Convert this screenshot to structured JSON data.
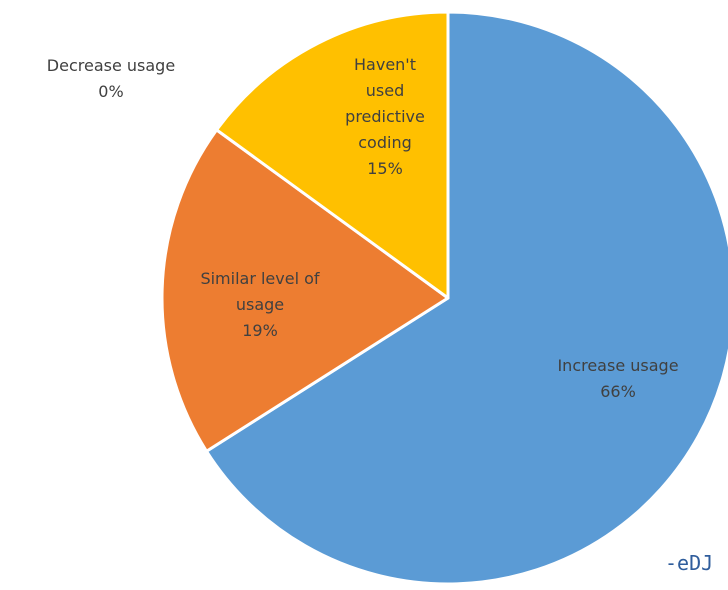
{
  "chart_data": {
    "type": "pie",
    "slices": [
      {
        "label_lines": [
          "Increase usage"
        ],
        "value": 66,
        "percent_label": "66%",
        "color": "#5B9BD5"
      },
      {
        "label_lines": [
          "Similar level of",
          "usage"
        ],
        "value": 19,
        "percent_label": "19%",
        "color": "#ED7D31"
      },
      {
        "label_lines": [
          "Haven't",
          "used",
          "predictive",
          "coding"
        ],
        "value": 15,
        "percent_label": "15%",
        "color": "#FFC000"
      },
      {
        "label_lines": [
          "Decrease usage"
        ],
        "value": 0,
        "percent_label": "0%",
        "color": "#A5A5A5"
      }
    ],
    "start_angle": "12 o'clock",
    "direction": "clockwise",
    "legend": "none"
  },
  "footer": {
    "credit_text": "-eDJ"
  }
}
